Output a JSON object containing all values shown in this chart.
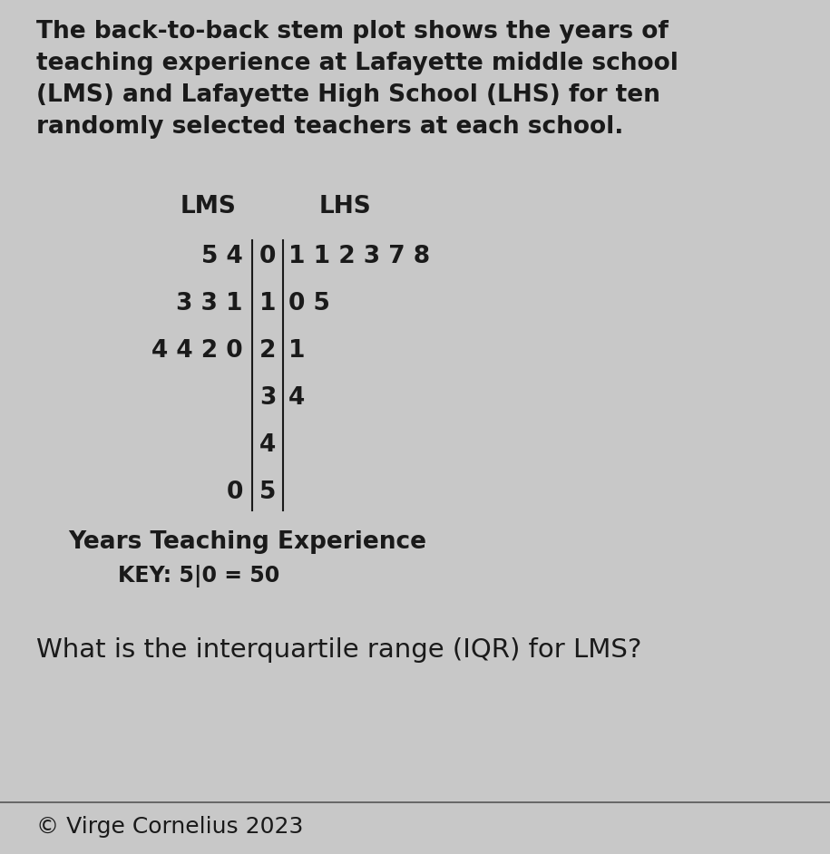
{
  "title_text": "The back-to-back stem plot shows the years of\nteaching experience at Lafayette middle school\n(LMS) and Lafayette High School (LHS) for ten\nrandomly selected teachers at each school.",
  "lms_label": "LMS",
  "lhs_label": "LHS",
  "stems": [
    "0",
    "1",
    "2",
    "3",
    "4",
    "5"
  ],
  "lms_leaves": [
    "5 4",
    "3 3 1",
    "4 4 2 0",
    "",
    "",
    "0"
  ],
  "lhs_leaves": [
    "1 1 2 3 7 8",
    "0 5",
    "1",
    "4",
    "",
    ""
  ],
  "xlabel": "Years Teaching Experience",
  "key_text": "KEY: 5|0 = 50",
  "question_text": "What is the interquartile range (IQR) for LMS?",
  "copyright_text": "© Virge Cornelius 2023",
  "bg_color": "#c8c8c8",
  "text_color": "#1a1a1a",
  "title_fontsize": 19,
  "table_fontsize": 19,
  "label_fontsize": 19,
  "question_fontsize": 21,
  "copyright_fontsize": 18,
  "key_fontsize": 17
}
